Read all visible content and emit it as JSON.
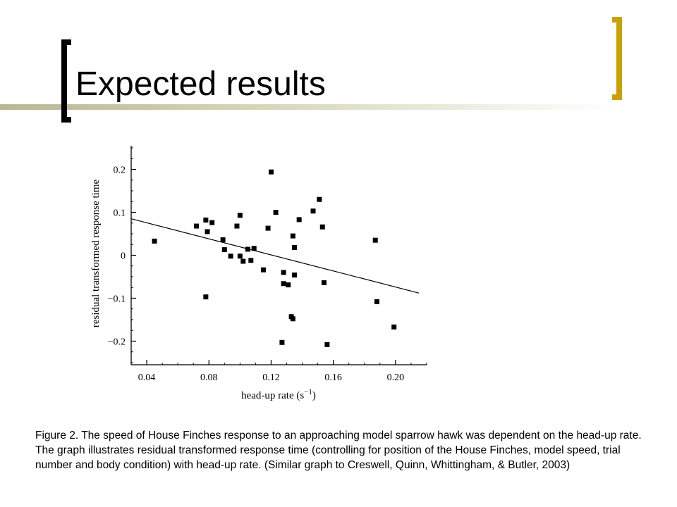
{
  "slide": {
    "title": "Expected results",
    "caption": "Figure 2. The speed of House Finches response to an approaching model sparrow hawk was dependent on the head-up rate. The graph illustrates residual transformed response time (controlling for position of the House Finches, model speed, trial number and body condition) with head-up rate. (Similar graph to Creswell, Quinn, Whittingham, & Butler, 2003)",
    "accent_color": "#c9a100",
    "bracket_color": "#000000"
  },
  "chart_data": {
    "type": "scatter",
    "title": "",
    "xlabel": "head-up rate (s",
    "xlabel_sup": "−1",
    "xlabel_close": ")",
    "ylabel": "residual transformed response time",
    "xlim": [
      0.03,
      0.22
    ],
    "ylim": [
      -0.255,
      0.255
    ],
    "xticks": [
      0.04,
      0.08,
      0.12,
      0.16,
      0.2
    ],
    "xtick_labels": [
      "0.04",
      "0.08",
      "0.12",
      "0.16",
      "0.20"
    ],
    "yticks": [
      0.2,
      0.1,
      0,
      -0.1,
      -0.2
    ],
    "ytick_labels": [
      "0.2",
      "0.1",
      "0",
      "−0.1",
      "−0.2"
    ],
    "grid": false,
    "marker_color": "#000000",
    "points": [
      {
        "x": 0.045,
        "y": 0.033
      },
      {
        "x": 0.072,
        "y": 0.068
      },
      {
        "x": 0.078,
        "y": 0.082
      },
      {
        "x": 0.078,
        "y": -0.097
      },
      {
        "x": 0.079,
        "y": 0.055
      },
      {
        "x": 0.082,
        "y": 0.076
      },
      {
        "x": 0.089,
        "y": 0.036
      },
      {
        "x": 0.09,
        "y": 0.013
      },
      {
        "x": 0.094,
        "y": -0.002
      },
      {
        "x": 0.098,
        "y": 0.068
      },
      {
        "x": 0.1,
        "y": 0.093
      },
      {
        "x": 0.1,
        "y": -0.002
      },
      {
        "x": 0.102,
        "y": -0.014
      },
      {
        "x": 0.105,
        "y": 0.014
      },
      {
        "x": 0.107,
        "y": -0.012
      },
      {
        "x": 0.109,
        "y": 0.016
      },
      {
        "x": 0.115,
        "y": -0.034
      },
      {
        "x": 0.118,
        "y": 0.063
      },
      {
        "x": 0.12,
        "y": 0.194
      },
      {
        "x": 0.123,
        "y": 0.1
      },
      {
        "x": 0.127,
        "y": -0.203
      },
      {
        "x": 0.128,
        "y": -0.04
      },
      {
        "x": 0.128,
        "y": -0.066
      },
      {
        "x": 0.131,
        "y": -0.069
      },
      {
        "x": 0.133,
        "y": -0.143
      },
      {
        "x": 0.134,
        "y": -0.148
      },
      {
        "x": 0.134,
        "y": 0.045
      },
      {
        "x": 0.135,
        "y": -0.046
      },
      {
        "x": 0.135,
        "y": 0.018
      },
      {
        "x": 0.138,
        "y": 0.083
      },
      {
        "x": 0.147,
        "y": 0.103
      },
      {
        "x": 0.151,
        "y": 0.13
      },
      {
        "x": 0.153,
        "y": 0.066
      },
      {
        "x": 0.154,
        "y": -0.064
      },
      {
        "x": 0.156,
        "y": -0.208
      },
      {
        "x": 0.187,
        "y": 0.035
      },
      {
        "x": 0.188,
        "y": -0.108
      },
      {
        "x": 0.199,
        "y": -0.167
      }
    ],
    "fit_line": {
      "x": [
        0.03,
        0.215
      ],
      "y": [
        0.085,
        -0.088
      ]
    }
  }
}
